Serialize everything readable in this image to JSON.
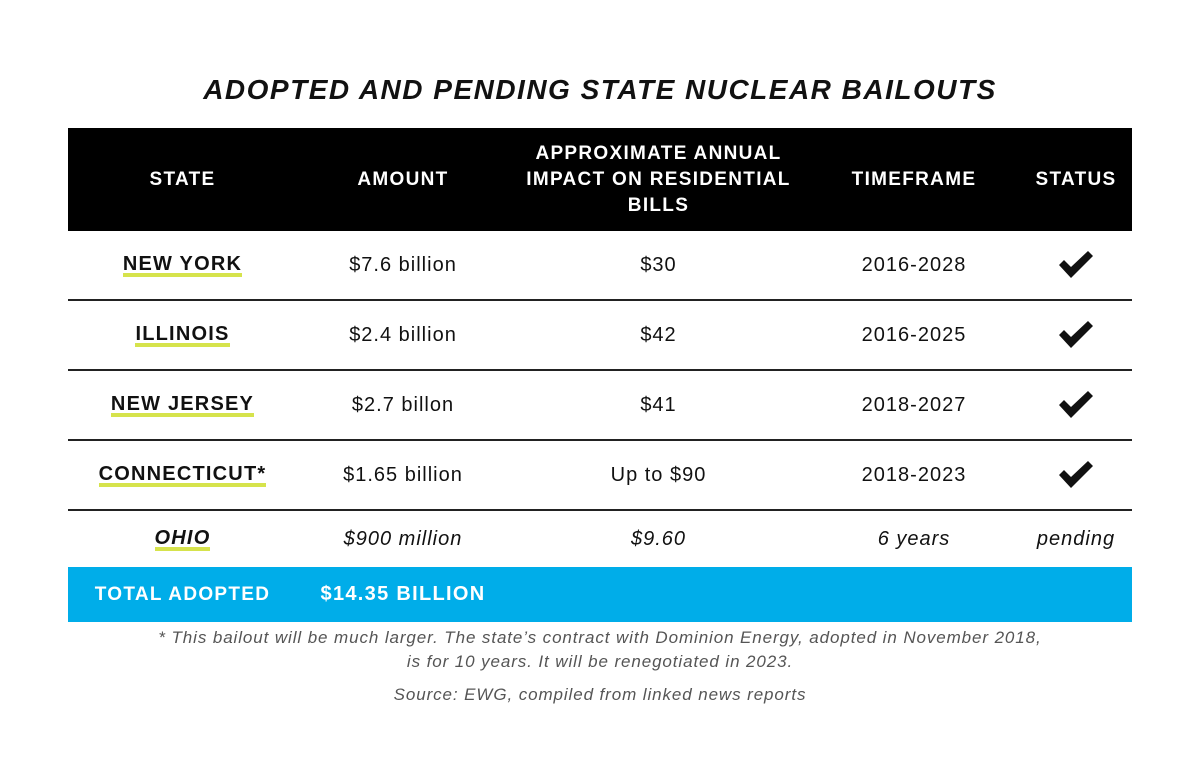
{
  "chart_data": {
    "type": "table",
    "title": "ADOPTED AND PENDING STATE NUCLEAR BAILOUTS",
    "columns": [
      "STATE",
      "AMOUNT",
      "APPROXIMATE ANNUAL IMPACT ON RESIDENTIAL BILLS",
      "TIMEFRAME",
      "STATUS"
    ],
    "rows": [
      {
        "state": "NEW YORK",
        "amount": "$7.6 billion",
        "impact": "$30",
        "timeframe": "2016-2028",
        "status": "check"
      },
      {
        "state": "ILLINOIS",
        "amount": "$2.4 billion",
        "impact": "$42",
        "timeframe": "2016-2025",
        "status": "check"
      },
      {
        "state": "NEW JERSEY",
        "amount": "$2.7 billon",
        "impact": "$41",
        "timeframe": "2018-2027",
        "status": "check"
      },
      {
        "state": "CONNECTICUT*",
        "amount": "$1.65 billion",
        "impact": "Up to $90",
        "timeframe": "2018-2023",
        "status": "check"
      },
      {
        "state": "OHIO",
        "amount": "$900 million",
        "impact": "$9.60",
        "timeframe": "6 years",
        "status": "pending"
      }
    ],
    "total": {
      "label": "TOTAL ADOPTED",
      "value": "$14.35 BILLION"
    },
    "footnote_line1": "* This bailout will be much larger. The state’s contract with Dominion Energy, adopted in November 2018,",
    "footnote_line2": "is for 10 years. It will be renegotiated in 2023.",
    "source": "Source: EWG, compiled from linked news reports",
    "colors": {
      "header_bg": "#000000",
      "total_bg": "#00ade9",
      "highlight": "#d6e34c"
    },
    "check_icon": "checkmark-icon"
  }
}
